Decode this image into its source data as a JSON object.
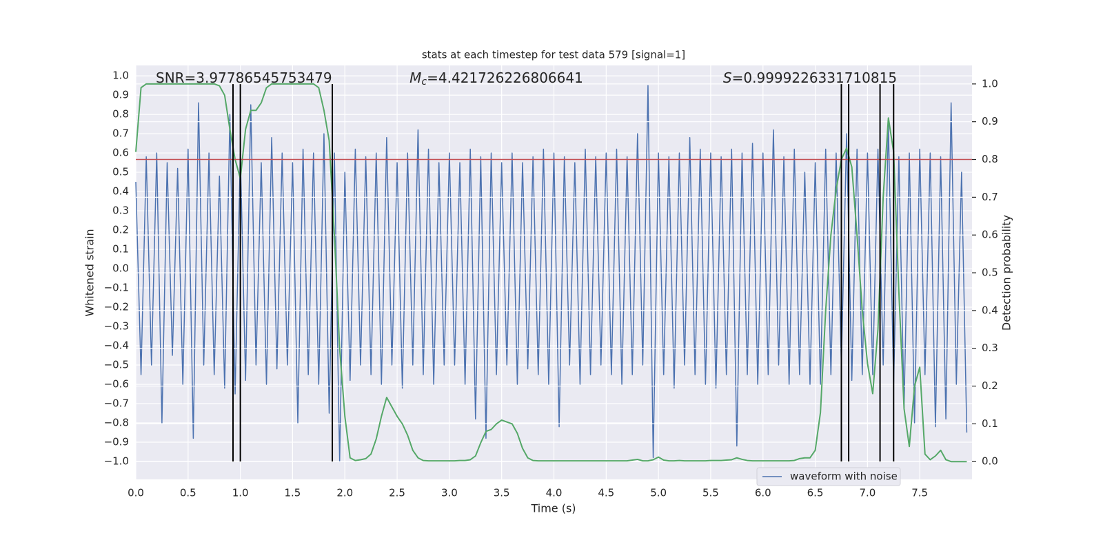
{
  "chart_data": {
    "type": "line",
    "title": "stats at each timestep for test data 579 [signal=1]",
    "xlabel": "Time (s)",
    "ylabel": "Whitened strain",
    "y2label": "Detection probability",
    "annotations": [
      {
        "text": "SNR=3.97786545753479"
      },
      {
        "symbol": "M",
        "subscript": "c",
        "text": "=4.421726226806641"
      },
      {
        "symbol": "S",
        "text": "=0.9999226331710815"
      }
    ],
    "grid": true,
    "legend": "lower right",
    "threshold": {
      "value": 0.8,
      "axis": "y2",
      "color": "#c44e52"
    },
    "crossings": {
      "values": [
        0.93,
        1.0,
        1.88,
        6.75,
        6.82,
        7.12,
        7.25
      ],
      "color": "#000000"
    },
    "x": [
      0,
      0.05,
      0.1,
      0.15,
      0.2,
      0.25,
      0.3,
      0.35,
      0.4,
      0.45,
      0.5,
      0.55,
      0.6,
      0.65,
      0.7,
      0.75,
      0.8,
      0.85,
      0.9,
      0.95,
      1.0,
      1.05,
      1.1,
      1.15,
      1.2,
      1.25,
      1.3,
      1.35,
      1.4,
      1.45,
      1.5,
      1.55,
      1.6,
      1.65,
      1.7,
      1.75,
      1.8,
      1.85,
      1.9,
      1.95,
      2.0,
      2.05,
      2.1,
      2.15,
      2.2,
      2.25,
      2.3,
      2.35,
      2.4,
      2.45,
      2.5,
      2.55,
      2.6,
      2.65,
      2.7,
      2.75,
      2.8,
      2.85,
      2.9,
      2.95,
      3.0,
      3.05,
      3.1,
      3.15,
      3.2,
      3.25,
      3.3,
      3.35,
      3.4,
      3.45,
      3.5,
      3.55,
      3.6,
      3.65,
      3.7,
      3.75,
      3.8,
      3.85,
      3.9,
      3.95,
      4.0,
      4.05,
      4.1,
      4.15,
      4.2,
      4.25,
      4.3,
      4.35,
      4.4,
      4.45,
      4.5,
      4.55,
      4.6,
      4.65,
      4.7,
      4.75,
      4.8,
      4.85,
      4.9,
      4.95,
      5.0,
      5.05,
      5.1,
      5.15,
      5.2,
      5.25,
      5.3,
      5.35,
      5.4,
      5.45,
      5.5,
      5.55,
      5.6,
      5.65,
      5.7,
      5.75,
      5.8,
      5.85,
      5.9,
      5.95,
      6.0,
      6.05,
      6.1,
      6.15,
      6.2,
      6.25,
      6.3,
      6.35,
      6.4,
      6.45,
      6.5,
      6.55,
      6.6,
      6.65,
      6.7,
      6.75,
      6.8,
      6.85,
      6.9,
      6.95,
      7.0,
      7.05,
      7.1,
      7.15,
      7.2,
      7.25,
      7.3,
      7.35,
      7.4,
      7.45,
      7.5,
      7.55,
      7.6,
      7.65,
      7.7,
      7.75,
      7.8,
      7.85,
      7.9,
      7.95
    ],
    "series": [
      {
        "name": "waveform with noise",
        "color": "#4c72b0",
        "values": [
          0.45,
          -0.55,
          0.58,
          -0.5,
          0.6,
          -0.8,
          0.55,
          -0.45,
          0.52,
          -0.6,
          0.62,
          -0.88,
          0.86,
          -0.5,
          0.6,
          -0.55,
          0.48,
          -0.62,
          0.8,
          -0.65,
          0.6,
          -0.58,
          0.85,
          -0.5,
          0.55,
          -0.6,
          0.68,
          -0.52,
          0.6,
          -0.5,
          0.55,
          -0.8,
          0.62,
          -0.55,
          0.6,
          -0.6,
          0.7,
          -0.75,
          0.6,
          -1.0,
          0.5,
          -0.58,
          0.62,
          -0.5,
          0.58,
          -0.55,
          0.6,
          -0.6,
          0.68,
          -0.5,
          0.55,
          -0.62,
          0.6,
          -0.5,
          0.72,
          -0.55,
          0.62,
          -0.6,
          0.55,
          -0.5,
          0.6,
          -0.5,
          0.55,
          -0.6,
          0.62,
          -0.78,
          0.58,
          -0.88,
          0.6,
          -0.55,
          0.55,
          -0.5,
          0.6,
          -0.6,
          0.55,
          -0.52,
          0.58,
          -0.55,
          0.62,
          -0.6,
          0.6,
          -0.82,
          0.58,
          -0.5,
          0.55,
          -0.6,
          0.62,
          -0.55,
          0.58,
          -0.5,
          0.6,
          -0.55,
          0.62,
          -0.6,
          0.58,
          -0.55,
          0.7,
          -0.5,
          0.95,
          -0.98,
          0.6,
          -0.55,
          0.58,
          -0.62,
          0.6,
          -0.5,
          0.68,
          -0.55,
          0.62,
          -0.6,
          0.6,
          -0.62,
          0.58,
          -0.55,
          0.62,
          -0.92,
          0.6,
          -0.55,
          0.65,
          -0.6,
          0.6,
          -0.55,
          0.72,
          -0.5,
          0.58,
          -0.6,
          0.62,
          -0.55,
          0.5,
          -0.6,
          0.55,
          -0.6,
          0.62,
          -0.55,
          0.6,
          -0.5,
          0.7,
          -0.58,
          0.62,
          -0.55,
          0.6,
          -0.55,
          0.62,
          -0.5,
          0.75,
          -0.6,
          0.58,
          -0.72,
          0.6,
          -0.8,
          0.62,
          -0.55,
          0.6,
          -0.82,
          0.58,
          -0.78,
          0.86,
          -0.6,
          0.5,
          -0.85
        ]
      },
      {
        "color": "#55a868",
        "axis": "y2",
        "values": [
          0.82,
          0.99,
          1.0,
          1.0,
          1.0,
          1.0,
          1.0,
          1.0,
          1.0,
          1.0,
          1.0,
          1.0,
          1.0,
          1.0,
          1.0,
          1.0,
          0.995,
          0.97,
          0.88,
          0.8,
          0.75,
          0.88,
          0.93,
          0.93,
          0.95,
          0.99,
          1.0,
          1.0,
          1.0,
          1.0,
          1.0,
          1.0,
          1.0,
          1.0,
          1.0,
          0.99,
          0.93,
          0.85,
          0.6,
          0.3,
          0.12,
          0.01,
          0.003,
          0.005,
          0.008,
          0.02,
          0.06,
          0.12,
          0.17,
          0.145,
          0.12,
          0.1,
          0.07,
          0.03,
          0.01,
          0.003,
          0.002,
          0.002,
          0.002,
          0.002,
          0.002,
          0.002,
          0.003,
          0.003,
          0.005,
          0.015,
          0.05,
          0.08,
          0.085,
          0.1,
          0.11,
          0.105,
          0.1,
          0.075,
          0.035,
          0.01,
          0.003,
          0.002,
          0.002,
          0.002,
          0.002,
          0.002,
          0.002,
          0.002,
          0.002,
          0.002,
          0.002,
          0.002,
          0.002,
          0.002,
          0.002,
          0.002,
          0.002,
          0.002,
          0.002,
          0.004,
          0.006,
          0.002,
          0.002,
          0.005,
          0.012,
          0.004,
          0.002,
          0.002,
          0.003,
          0.002,
          0.002,
          0.002,
          0.002,
          0.002,
          0.003,
          0.003,
          0.003,
          0.004,
          0.005,
          0.01,
          0.006,
          0.003,
          0.002,
          0.002,
          0.002,
          0.002,
          0.002,
          0.002,
          0.002,
          0.002,
          0.003,
          0.008,
          0.01,
          0.01,
          0.03,
          0.13,
          0.4,
          0.6,
          0.72,
          0.8,
          0.83,
          0.78,
          0.6,
          0.4,
          0.26,
          0.18,
          0.35,
          0.7,
          0.91,
          0.82,
          0.45,
          0.14,
          0.04,
          0.2,
          0.25,
          0.02,
          0.005,
          0.015,
          0.03,
          0.005,
          0.0,
          0.0,
          0.0,
          0.0
        ]
      }
    ],
    "xlim": [
      0,
      8.0
    ],
    "xticks": [
      {
        "value": 0,
        "label": "0.0"
      },
      0.5,
      {
        "value": 1,
        "label": "1.0"
      },
      1.5,
      {
        "value": 2,
        "label": "2.0"
      },
      2.5,
      {
        "value": 3,
        "label": "3.0"
      },
      3.5,
      {
        "value": 4,
        "label": "4.0"
      },
      4.5,
      {
        "value": 5,
        "label": "5.0"
      },
      5.5,
      {
        "value": 6,
        "label": "6.0"
      },
      6.5,
      {
        "value": 7,
        "label": "7.0"
      },
      7.5
    ],
    "ylim": [
      -1.093,
      1.054
    ],
    "yticks": [
      {
        "value": -1,
        "label": "−1.0"
      },
      {
        "value": -0.9,
        "label": "−0.9"
      },
      {
        "value": -0.8,
        "label": "−0.8"
      },
      {
        "value": -0.7,
        "label": "−0.7"
      },
      {
        "value": -0.6,
        "label": "−0.6"
      },
      {
        "value": -0.5,
        "label": "−0.5"
      },
      {
        "value": -0.4,
        "label": "−0.4"
      },
      {
        "value": -0.3,
        "label": "−0.3"
      },
      {
        "value": -0.2,
        "label": "−0.2"
      },
      {
        "value": -0.1,
        "label": "−0.1"
      },
      {
        "value": 0,
        "label": "0.0"
      },
      0.1,
      0.2,
      0.3,
      0.4,
      0.5,
      0.6,
      0.7,
      0.8,
      0.9,
      {
        "value": 1,
        "label": "1.0"
      }
    ],
    "y2lim": [
      -0.047,
      1.049
    ],
    "y2ticks": [
      {
        "value": 0,
        "label": "0.0"
      },
      0.1,
      0.2,
      0.3,
      0.4,
      0.5,
      0.6,
      0.7,
      0.8,
      0.9,
      {
        "value": 1,
        "label": "1.0"
      }
    ]
  }
}
